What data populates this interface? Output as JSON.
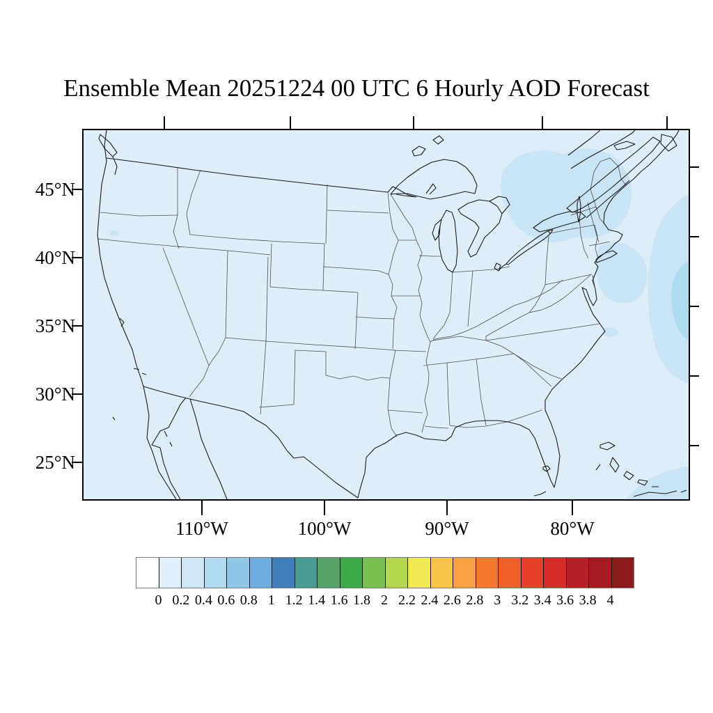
{
  "title": "Ensemble Mean 20251224 00 UTC 6 Hourly AOD Forecast",
  "axes": {
    "lat_labels": [
      "45°N",
      "40°N",
      "35°N",
      "30°N",
      "25°N"
    ],
    "lon_labels": [
      "110°W",
      "100°W",
      "90°W",
      "80°W"
    ]
  },
  "colorbar": {
    "labels": [
      "0",
      "0.2",
      "0.4",
      "0.6",
      "0.8",
      "1",
      "1.2",
      "1.4",
      "1.6",
      "1.8",
      "2",
      "2.2",
      "2.4",
      "2.6",
      "2.8",
      "3",
      "3.2",
      "3.4",
      "3.6",
      "3.8",
      "4"
    ],
    "colors": [
      "#ffffff",
      "#e1f0fa",
      "#cde7f6",
      "#aedbf1",
      "#8ec8e9",
      "#6caede",
      "#3f7fbc",
      "#4a9b94",
      "#55a26b",
      "#3cab47",
      "#77c151",
      "#b4d64e",
      "#f0e951",
      "#f8c54b",
      "#f8a044",
      "#f47b2e",
      "#ee5f2a",
      "#e64128",
      "#d62a26",
      "#b72025",
      "#a21c20",
      "#8c1a1b"
    ]
  },
  "map": {
    "base_fill": "#deeef9",
    "patch_fill": "#c9e4f5",
    "patch_deep_fill": "#aedbf1",
    "coast_color": "#1a1a1a",
    "state_color": "#4d4d4d"
  }
}
